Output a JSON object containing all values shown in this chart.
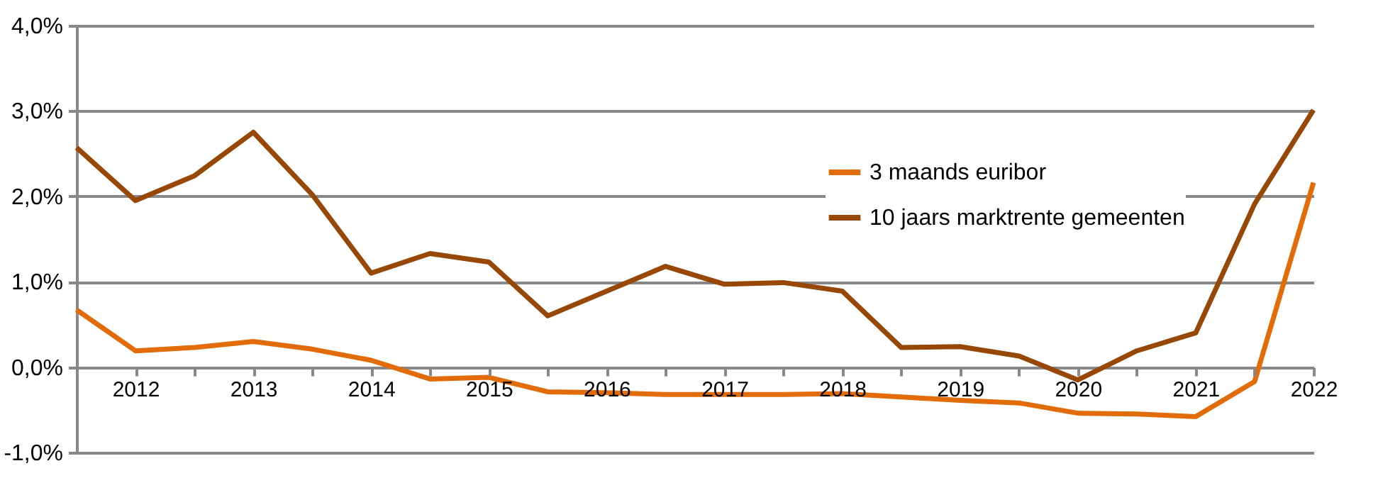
{
  "chart_data": {
    "type": "line",
    "x": [
      2011.5,
      2012,
      2012.5,
      2013,
      2013.5,
      2014,
      2014.5,
      2015,
      2015.5,
      2016,
      2016.5,
      2017,
      2017.5,
      2018,
      2018.5,
      2019,
      2019.5,
      2020,
      2020.5,
      2021,
      2021.5,
      2022
    ],
    "series": [
      {
        "name": "3 maands euribor",
        "color": "#e36c0a",
        "values": [
          0.67,
          0.19,
          0.23,
          0.3,
          0.21,
          0.08,
          -0.14,
          -0.12,
          -0.29,
          -0.3,
          -0.32,
          -0.32,
          -0.32,
          -0.31,
          -0.35,
          -0.39,
          -0.42,
          -0.54,
          -0.55,
          -0.58,
          -0.17,
          2.16
        ]
      },
      {
        "name": "10 jaars marktrente gemeenten",
        "color": "#974806",
        "values": [
          2.57,
          1.95,
          2.24,
          2.75,
          2.02,
          1.1,
          1.33,
          1.23,
          0.6,
          0.89,
          1.18,
          0.97,
          0.99,
          0.89,
          0.23,
          0.24,
          0.13,
          -0.15,
          0.19,
          0.4,
          1.91,
          3.01
        ]
      }
    ],
    "xlim": [
      2011.5,
      2022
    ],
    "xticks": [
      2012,
      {
        "value": 2012.5,
        "label": null
      },
      2013,
      {
        "value": 2013.5,
        "label": null
      },
      2014,
      {
        "value": 2014.5,
        "label": null
      },
      2015,
      {
        "value": 2015.5,
        "label": null
      },
      2016,
      {
        "value": 2016.5,
        "label": null
      },
      2017,
      {
        "value": 2017.5,
        "label": null
      },
      2018,
      {
        "value": 2018.5,
        "label": null
      },
      2019,
      {
        "value": 2019.5,
        "label": null
      },
      2020,
      {
        "value": 2020.5,
        "label": null
      },
      2021,
      {
        "value": 2021.5,
        "label": null
      },
      2022
    ],
    "ylim": [
      -1,
      4
    ],
    "yticks": [
      {
        "value": -1,
        "label": "-1,0%"
      },
      {
        "value": 0,
        "label": "0,0%"
      },
      {
        "value": 1,
        "label": "1,0%"
      },
      {
        "value": 2,
        "label": "2,0%"
      },
      {
        "value": 3,
        "label": "3,0%"
      },
      {
        "value": 4,
        "label": "4,0%"
      }
    ],
    "grid": "y",
    "legend": "top right",
    "marker": "none",
    "line_style": "solid"
  }
}
